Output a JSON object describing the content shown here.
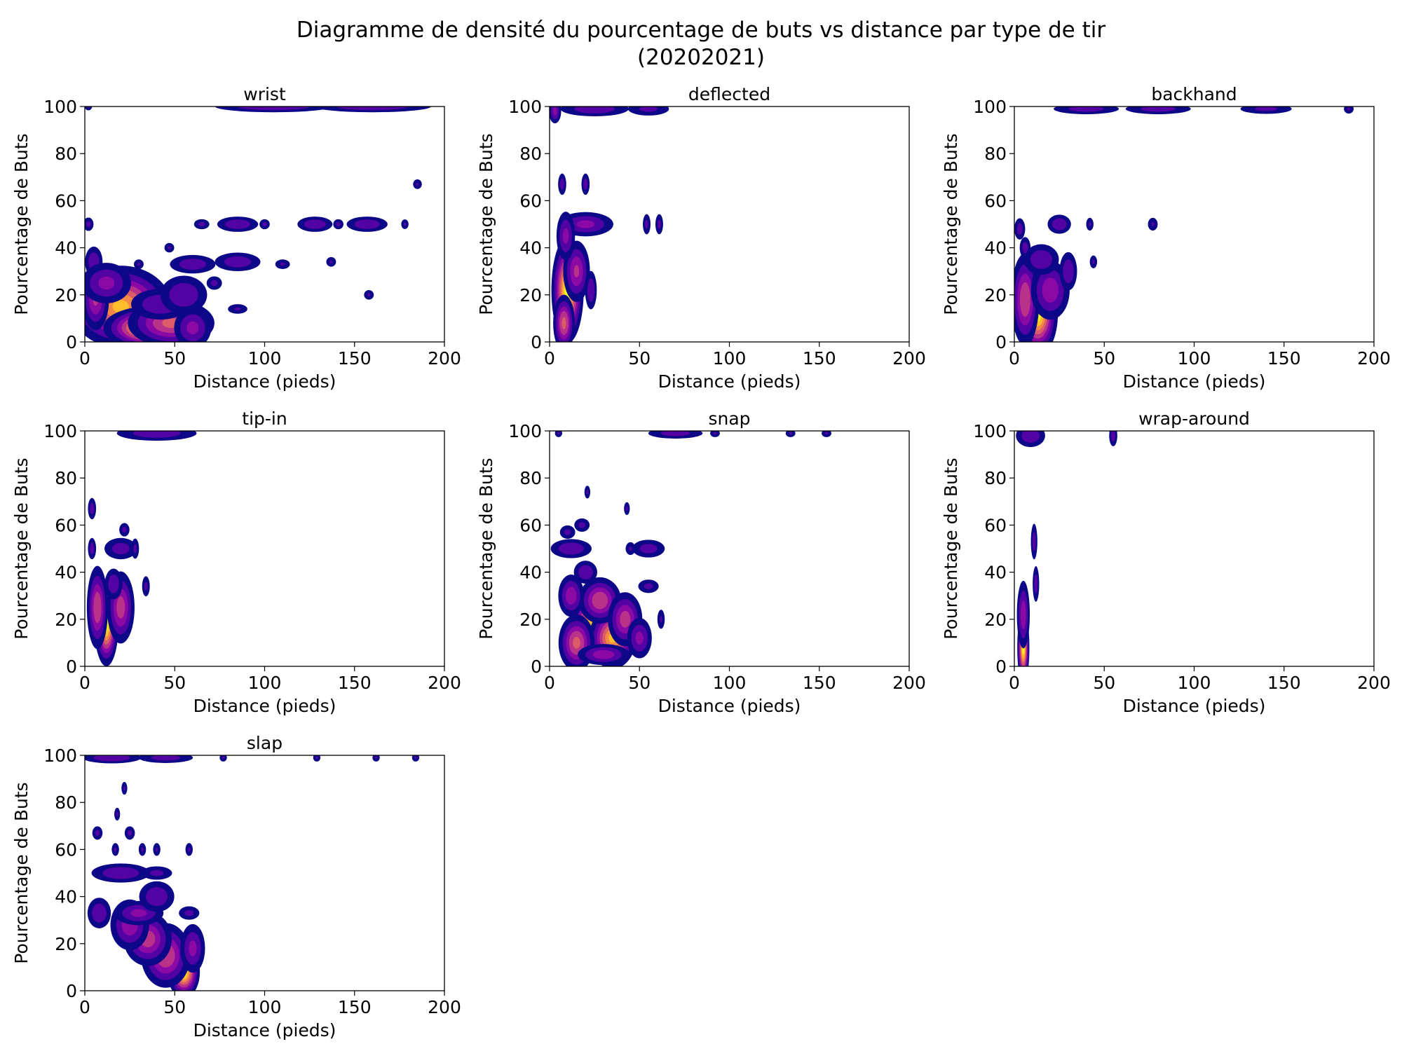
{
  "figure": {
    "title_line1": "Diagramme de densité du pourcentage de buts vs distance par type de tir",
    "title_line2": "(20202021)"
  },
  "colormap": [
    "#0d0887",
    "#5302a3",
    "#8b0aa5",
    "#b83289",
    "#db5c68",
    "#f48849",
    "#febd2a",
    "#f0f921"
  ],
  "chart_data": [
    {
      "type": "heatmap",
      "title": "wrist",
      "xlabel": "Distance (pieds)",
      "ylabel": "Pourcentage de Buts",
      "xlim": [
        0,
        200
      ],
      "ylim": [
        0,
        100
      ],
      "xticks": [
        0,
        50,
        100,
        150,
        200
      ],
      "yticks": [
        0,
        20,
        40,
        60,
        80,
        100
      ],
      "blobs": [
        {
          "x": 20,
          "y": 15,
          "sx": 13,
          "sy": 8,
          "w": 0.85
        },
        {
          "x": 35,
          "y": 6,
          "sx": 11,
          "sy": 4,
          "w": 1.0
        },
        {
          "x": 48,
          "y": 8,
          "sx": 12,
          "sy": 5,
          "w": 0.6
        },
        {
          "x": 60,
          "y": 6,
          "sx": 6,
          "sy": 5,
          "w": 0.35
        },
        {
          "x": 42,
          "y": 16,
          "sx": 10,
          "sy": 4,
          "w": 0.3
        },
        {
          "x": 6,
          "y": 18,
          "sx": 4,
          "sy": 7,
          "w": 0.45
        },
        {
          "x": 5,
          "y": 34,
          "sx": 3,
          "sy": 4,
          "w": 0.3
        },
        {
          "x": 12,
          "y": 25,
          "sx": 8,
          "sy": 5,
          "w": 0.35
        },
        {
          "x": 55,
          "y": 20,
          "sx": 8,
          "sy": 5,
          "w": 0.3
        },
        {
          "x": 60,
          "y": 33,
          "sx": 8,
          "sy": 2.5,
          "w": 0.28
        },
        {
          "x": 85,
          "y": 34,
          "sx": 8,
          "sy": 2.5,
          "w": 0.28
        },
        {
          "x": 72,
          "y": 25,
          "sx": 3,
          "sy": 2,
          "w": 0.22
        },
        {
          "x": 2,
          "y": 50,
          "sx": 2,
          "sy": 2,
          "w": 0.22
        },
        {
          "x": 65,
          "y": 50,
          "sx": 3,
          "sy": 1.5,
          "w": 0.22
        },
        {
          "x": 85,
          "y": 50,
          "sx": 7,
          "sy": 2,
          "w": 0.3
        },
        {
          "x": 100,
          "y": 50,
          "sx": 2,
          "sy": 1.5,
          "w": 0.22
        },
        {
          "x": 128,
          "y": 50,
          "sx": 6,
          "sy": 2,
          "w": 0.3
        },
        {
          "x": 157,
          "y": 50,
          "sx": 7,
          "sy": 2,
          "w": 0.3
        },
        {
          "x": 141,
          "y": 50,
          "sx": 2,
          "sy": 1.5,
          "w": 0.22
        },
        {
          "x": 178,
          "y": 50,
          "sx": 1.5,
          "sy": 1.5,
          "w": 0.2
        },
        {
          "x": 185,
          "y": 67,
          "sx": 1.8,
          "sy": 1.5,
          "w": 0.2
        },
        {
          "x": 30,
          "y": 33,
          "sx": 2,
          "sy": 1.5,
          "w": 0.2
        },
        {
          "x": 47,
          "y": 40,
          "sx": 2,
          "sy": 1.5,
          "w": 0.2
        },
        {
          "x": 110,
          "y": 33,
          "sx": 3,
          "sy": 1.5,
          "w": 0.2
        },
        {
          "x": 137,
          "y": 34,
          "sx": 2,
          "sy": 1.5,
          "w": 0.2
        },
        {
          "x": 158,
          "y": 20,
          "sx": 2,
          "sy": 1.5,
          "w": 0.2
        },
        {
          "x": 85,
          "y": 14,
          "sx": 4,
          "sy": 1.5,
          "w": 0.2
        },
        {
          "x": 105,
          "y": 100,
          "sx": 20,
          "sy": 1.5,
          "w": 0.3
        },
        {
          "x": 160,
          "y": 100,
          "sx": 20,
          "sy": 1.5,
          "w": 0.3
        },
        {
          "x": 2,
          "y": 100,
          "sx": 1.5,
          "sy": 1.2,
          "w": 0.2
        }
      ]
    },
    {
      "type": "heatmap",
      "title": "deflected",
      "xlabel": "Distance (pieds)",
      "ylabel": "Pourcentage de Buts",
      "xlim": [
        0,
        200
      ],
      "ylim": [
        0,
        100
      ],
      "xticks": [
        0,
        50,
        100,
        150,
        200
      ],
      "yticks": [
        0,
        20,
        40,
        60,
        80,
        100
      ],
      "blobs": [
        {
          "x": 10,
          "y": 22,
          "sx": 4,
          "sy": 10,
          "w": 1.0
        },
        {
          "x": 8,
          "y": 8,
          "sx": 3,
          "sy": 6,
          "w": 0.6
        },
        {
          "x": 15,
          "y": 30,
          "sx": 4,
          "sy": 7,
          "w": 0.45
        },
        {
          "x": 23,
          "y": 22,
          "sx": 2,
          "sy": 5,
          "w": 0.3
        },
        {
          "x": 20,
          "y": 50,
          "sx": 9,
          "sy": 3,
          "w": 0.35
        },
        {
          "x": 9,
          "y": 45,
          "sx": 3,
          "sy": 6,
          "w": 0.35
        },
        {
          "x": 7,
          "y": 67,
          "sx": 1.5,
          "sy": 3,
          "w": 0.25
        },
        {
          "x": 20,
          "y": 67,
          "sx": 1.5,
          "sy": 3,
          "w": 0.25
        },
        {
          "x": 54,
          "y": 50,
          "sx": 1.5,
          "sy": 3,
          "w": 0.22
        },
        {
          "x": 61,
          "y": 50,
          "sx": 1.5,
          "sy": 3,
          "w": 0.22
        },
        {
          "x": 3,
          "y": 98,
          "sx": 2,
          "sy": 3,
          "w": 0.35
        },
        {
          "x": 25,
          "y": 99,
          "sx": 12,
          "sy": 2,
          "w": 0.28
        },
        {
          "x": 55,
          "y": 99,
          "sx": 8,
          "sy": 2,
          "w": 0.22
        }
      ]
    },
    {
      "type": "heatmap",
      "title": "backhand",
      "xlabel": "Distance (pieds)",
      "ylabel": "Pourcentage de Buts",
      "xlim": [
        0,
        200
      ],
      "ylim": [
        0,
        100
      ],
      "xticks": [
        0,
        50,
        100,
        150,
        200
      ],
      "yticks": [
        0,
        20,
        40,
        60,
        80,
        100
      ],
      "blobs": [
        {
          "x": 13,
          "y": 12,
          "sx": 5,
          "sy": 8,
          "w": 1.0
        },
        {
          "x": 6,
          "y": 18,
          "sx": 4,
          "sy": 10,
          "w": 0.55
        },
        {
          "x": 20,
          "y": 22,
          "sx": 6,
          "sy": 7,
          "w": 0.4
        },
        {
          "x": 15,
          "y": 35,
          "sx": 6,
          "sy": 4,
          "w": 0.3
        },
        {
          "x": 3,
          "y": 48,
          "sx": 2,
          "sy": 3,
          "w": 0.25
        },
        {
          "x": 25,
          "y": 50,
          "sx": 4,
          "sy": 2.5,
          "w": 0.3
        },
        {
          "x": 42,
          "y": 50,
          "sx": 1.5,
          "sy": 2,
          "w": 0.2
        },
        {
          "x": 44,
          "y": 34,
          "sx": 1.5,
          "sy": 2,
          "w": 0.2
        },
        {
          "x": 77,
          "y": 50,
          "sx": 2,
          "sy": 2,
          "w": 0.2
        },
        {
          "x": 6,
          "y": 40,
          "sx": 2,
          "sy": 3,
          "w": 0.25
        },
        {
          "x": 30,
          "y": 30,
          "sx": 3,
          "sy": 5,
          "w": 0.3
        },
        {
          "x": 40,
          "y": 99,
          "sx": 12,
          "sy": 1.5,
          "w": 0.25
        },
        {
          "x": 80,
          "y": 99,
          "sx": 12,
          "sy": 1.5,
          "w": 0.25
        },
        {
          "x": 140,
          "y": 99,
          "sx": 10,
          "sy": 1.5,
          "w": 0.22
        },
        {
          "x": 186,
          "y": 99,
          "sx": 2,
          "sy": 1.5,
          "w": 0.2
        }
      ]
    },
    {
      "type": "heatmap",
      "title": "tip-in",
      "xlabel": "Distance (pieds)",
      "ylabel": "Pourcentage de Buts",
      "xlim": [
        0,
        200
      ],
      "ylim": [
        0,
        100
      ],
      "xticks": [
        0,
        50,
        100,
        150,
        200
      ],
      "yticks": [
        0,
        20,
        40,
        60,
        80,
        100
      ],
      "blobs": [
        {
          "x": 12,
          "y": 18,
          "sx": 3,
          "sy": 8,
          "w": 1.0
        },
        {
          "x": 7,
          "y": 25,
          "sx": 3,
          "sy": 9,
          "w": 0.55
        },
        {
          "x": 20,
          "y": 25,
          "sx": 4,
          "sy": 8,
          "w": 0.5
        },
        {
          "x": 16,
          "y": 35,
          "sx": 3,
          "sy": 4,
          "w": 0.3
        },
        {
          "x": 4,
          "y": 50,
          "sx": 1.5,
          "sy": 3,
          "w": 0.25
        },
        {
          "x": 4,
          "y": 67,
          "sx": 1.5,
          "sy": 3,
          "w": 0.25
        },
        {
          "x": 20,
          "y": 50,
          "sx": 6,
          "sy": 3,
          "w": 0.25
        },
        {
          "x": 22,
          "y": 58,
          "sx": 2,
          "sy": 2,
          "w": 0.22
        },
        {
          "x": 34,
          "y": 34,
          "sx": 1.5,
          "sy": 3,
          "w": 0.22
        },
        {
          "x": 28,
          "y": 50,
          "sx": 1.5,
          "sy": 3,
          "w": 0.22
        },
        {
          "x": 40,
          "y": 99,
          "sx": 14,
          "sy": 2,
          "w": 0.28
        }
      ]
    },
    {
      "type": "heatmap",
      "title": "snap",
      "xlabel": "Distance (pieds)",
      "ylabel": "Pourcentage de Buts",
      "xlim": [
        0,
        200
      ],
      "ylim": [
        0,
        100
      ],
      "xticks": [
        0,
        50,
        100,
        150,
        200
      ],
      "yticks": [
        0,
        20,
        40,
        60,
        80,
        100
      ],
      "blobs": [
        {
          "x": 24,
          "y": 18,
          "sx": 6,
          "sy": 6,
          "w": 0.9
        },
        {
          "x": 35,
          "y": 12,
          "sx": 6,
          "sy": 6,
          "w": 0.85
        },
        {
          "x": 15,
          "y": 10,
          "sx": 5,
          "sy": 6,
          "w": 0.6
        },
        {
          "x": 28,
          "y": 28,
          "sx": 6,
          "sy": 5,
          "w": 0.55
        },
        {
          "x": 42,
          "y": 20,
          "sx": 5,
          "sy": 6,
          "w": 0.5
        },
        {
          "x": 12,
          "y": 30,
          "sx": 4,
          "sy": 5,
          "w": 0.4
        },
        {
          "x": 50,
          "y": 12,
          "sx": 4,
          "sy": 5,
          "w": 0.35
        },
        {
          "x": 30,
          "y": 5,
          "sx": 8,
          "sy": 2.5,
          "w": 0.4
        },
        {
          "x": 12,
          "y": 50,
          "sx": 7,
          "sy": 2.5,
          "w": 0.3
        },
        {
          "x": 55,
          "y": 50,
          "sx": 6,
          "sy": 2.5,
          "w": 0.25
        },
        {
          "x": 45,
          "y": 50,
          "sx": 2,
          "sy": 2,
          "w": 0.2
        },
        {
          "x": 18,
          "y": 60,
          "sx": 3,
          "sy": 2,
          "w": 0.22
        },
        {
          "x": 10,
          "y": 57,
          "sx": 3,
          "sy": 2,
          "w": 0.22
        },
        {
          "x": 21,
          "y": 74,
          "sx": 1.2,
          "sy": 2,
          "w": 0.2
        },
        {
          "x": 43,
          "y": 67,
          "sx": 1.2,
          "sy": 2,
          "w": 0.2
        },
        {
          "x": 55,
          "y": 34,
          "sx": 4,
          "sy": 2,
          "w": 0.22
        },
        {
          "x": 20,
          "y": 40,
          "sx": 4,
          "sy": 3,
          "w": 0.3
        },
        {
          "x": 62,
          "y": 20,
          "sx": 1.5,
          "sy": 3,
          "w": 0.2
        },
        {
          "x": 5,
          "y": 99,
          "sx": 1.5,
          "sy": 1.2,
          "w": 0.2
        },
        {
          "x": 70,
          "y": 99,
          "sx": 10,
          "sy": 1.5,
          "w": 0.25
        },
        {
          "x": 92,
          "y": 99,
          "sx": 2,
          "sy": 1.2,
          "w": 0.2
        },
        {
          "x": 134,
          "y": 99,
          "sx": 2,
          "sy": 1.2,
          "w": 0.2
        },
        {
          "x": 154,
          "y": 99,
          "sx": 2,
          "sy": 1.2,
          "w": 0.2
        }
      ]
    },
    {
      "type": "heatmap",
      "title": "wrap-around",
      "xlabel": "Distance (pieds)",
      "ylabel": "Pourcentage de Buts",
      "xlim": [
        0,
        200
      ],
      "ylim": [
        0,
        100
      ],
      "xticks": [
        0,
        50,
        100,
        150,
        200
      ],
      "yticks": [
        0,
        20,
        40,
        60,
        80,
        100
      ],
      "blobs": [
        {
          "x": 5,
          "y": 8,
          "sx": 1.5,
          "sy": 7,
          "w": 1.0
        },
        {
          "x": 5,
          "y": 22,
          "sx": 2,
          "sy": 8,
          "w": 0.4
        },
        {
          "x": 12,
          "y": 35,
          "sx": 1.2,
          "sy": 5,
          "w": 0.25
        },
        {
          "x": 11,
          "y": 53,
          "sx": 1.2,
          "sy": 5,
          "w": 0.25
        },
        {
          "x": 9,
          "y": 98,
          "sx": 5,
          "sy": 3,
          "w": 0.3
        },
        {
          "x": 55,
          "y": 98,
          "sx": 1.5,
          "sy": 3,
          "w": 0.25
        }
      ]
    },
    {
      "type": "heatmap",
      "title": "slap",
      "xlabel": "Distance (pieds)",
      "ylabel": "Pourcentage de Buts",
      "xlim": [
        0,
        200
      ],
      "ylim": [
        0,
        100
      ],
      "xticks": [
        0,
        50,
        100,
        150,
        200
      ],
      "yticks": [
        0,
        20,
        40,
        60,
        80,
        100
      ],
      "blobs": [
        {
          "x": 55,
          "y": 8,
          "sx": 4,
          "sy": 5,
          "w": 1.0
        },
        {
          "x": 45,
          "y": 15,
          "sx": 7,
          "sy": 7,
          "w": 0.55
        },
        {
          "x": 35,
          "y": 22,
          "sx": 7,
          "sy": 6,
          "w": 0.5
        },
        {
          "x": 25,
          "y": 28,
          "sx": 6,
          "sy": 6,
          "w": 0.4
        },
        {
          "x": 60,
          "y": 18,
          "sx": 4,
          "sy": 6,
          "w": 0.35
        },
        {
          "x": 30,
          "y": 33,
          "sx": 8,
          "sy": 3,
          "w": 0.35
        },
        {
          "x": 8,
          "y": 33,
          "sx": 4,
          "sy": 4,
          "w": 0.3
        },
        {
          "x": 20,
          "y": 50,
          "sx": 10,
          "sy": 2.5,
          "w": 0.3
        },
        {
          "x": 40,
          "y": 50,
          "sx": 6,
          "sy": 2,
          "w": 0.22
        },
        {
          "x": 40,
          "y": 40,
          "sx": 6,
          "sy": 4,
          "w": 0.3
        },
        {
          "x": 58,
          "y": 33,
          "sx": 4,
          "sy": 2,
          "w": 0.22
        },
        {
          "x": 7,
          "y": 67,
          "sx": 2,
          "sy": 2,
          "w": 0.22
        },
        {
          "x": 25,
          "y": 67,
          "sx": 2,
          "sy": 2,
          "w": 0.22
        },
        {
          "x": 22,
          "y": 86,
          "sx": 1.2,
          "sy": 2,
          "w": 0.2
        },
        {
          "x": 18,
          "y": 75,
          "sx": 1.2,
          "sy": 2,
          "w": 0.2
        },
        {
          "x": 17,
          "y": 60,
          "sx": 1.5,
          "sy": 2,
          "w": 0.2
        },
        {
          "x": 32,
          "y": 60,
          "sx": 1.5,
          "sy": 2,
          "w": 0.2
        },
        {
          "x": 40,
          "y": 60,
          "sx": 1.5,
          "sy": 2,
          "w": 0.2
        },
        {
          "x": 58,
          "y": 60,
          "sx": 1.5,
          "sy": 2,
          "w": 0.2
        },
        {
          "x": 15,
          "y": 99,
          "sx": 10,
          "sy": 1.5,
          "w": 0.3
        },
        {
          "x": 45,
          "y": 99,
          "sx": 10,
          "sy": 1.5,
          "w": 0.25
        },
        {
          "x": 77,
          "y": 99,
          "sx": 1.5,
          "sy": 1.2,
          "w": 0.2
        },
        {
          "x": 129,
          "y": 99,
          "sx": 1.5,
          "sy": 1.2,
          "w": 0.2
        },
        {
          "x": 162,
          "y": 99,
          "sx": 1.5,
          "sy": 1.2,
          "w": 0.2
        },
        {
          "x": 184,
          "y": 99,
          "sx": 1.5,
          "sy": 1.2,
          "w": 0.2
        }
      ]
    }
  ]
}
